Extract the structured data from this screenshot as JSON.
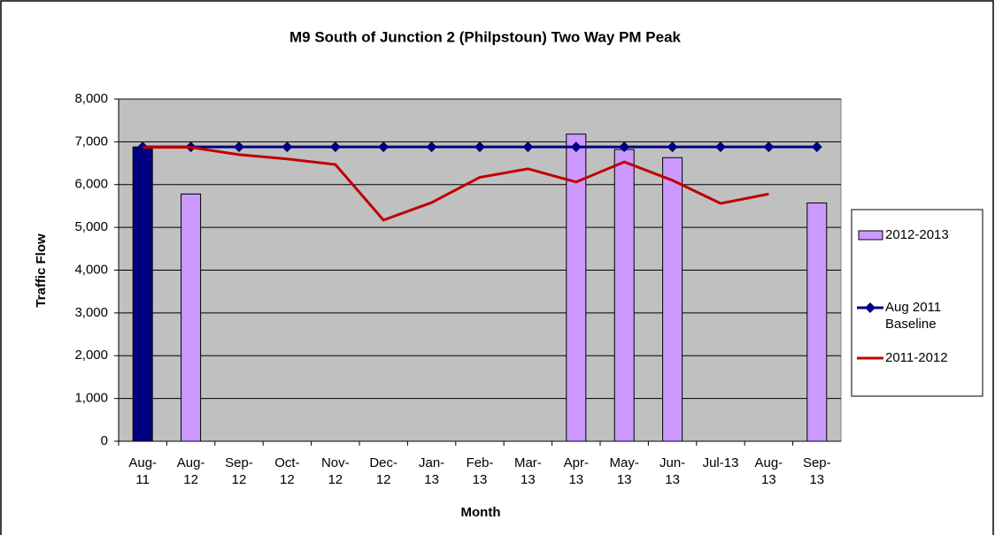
{
  "chart_data": {
    "type": "bar-line",
    "title": "M9 South of Junction 2 (Philpstoun)  Two Way PM Peak",
    "x_label": "Month",
    "y_label": "Traffic Flow",
    "categories": [
      "Aug-11",
      "Aug-12",
      "Sep-12",
      "Oct-12",
      "Nov-12",
      "Dec-12",
      "Jan-13",
      "Feb-13",
      "Mar-13",
      "Apr-13",
      "May-13",
      "Jun-13",
      "Jul-13",
      "Aug-13",
      "Sep-13"
    ],
    "ylim": [
      0,
      8000
    ],
    "yticks": [
      0,
      {
        "value": 1000,
        "label": "1,000"
      },
      {
        "value": 2000,
        "label": "2,000"
      },
      {
        "value": 3000,
        "label": "3,000"
      },
      {
        "value": 4000,
        "label": "4,000"
      },
      {
        "value": 5000,
        "label": "5,000"
      },
      {
        "value": 6000,
        "label": "6,000"
      },
      {
        "value": 7000,
        "label": "7,000"
      },
      {
        "value": 8000,
        "label": "8,000"
      }
    ],
    "grid": true,
    "legend": "right",
    "plot_background": "#c0c0c0",
    "series": [
      {
        "name": "2012-2013",
        "kind": "bar",
        "color": "#cc99ff",
        "highlight": {
          "index": 0,
          "color": "#000080"
        },
        "values": [
          6880,
          5780,
          null,
          null,
          null,
          null,
          null,
          null,
          null,
          7180,
          6820,
          6630,
          null,
          null,
          5570
        ]
      },
      {
        "name": "Aug 2011 Baseline",
        "kind": "line",
        "marker": "diamond",
        "color": "#000080",
        "values": [
          6880,
          6880,
          6880,
          6880,
          6880,
          6880,
          6880,
          6880,
          6880,
          6880,
          6880,
          6880,
          6880,
          6880,
          6880
        ]
      },
      {
        "name": "2011-2012",
        "kind": "line",
        "color": "#c00000",
        "values": [
          6870,
          6870,
          6700,
          6600,
          6470,
          5170,
          5580,
          6170,
          6370,
          6060,
          6530,
          6100,
          5560,
          5780,
          null
        ]
      }
    ]
  }
}
